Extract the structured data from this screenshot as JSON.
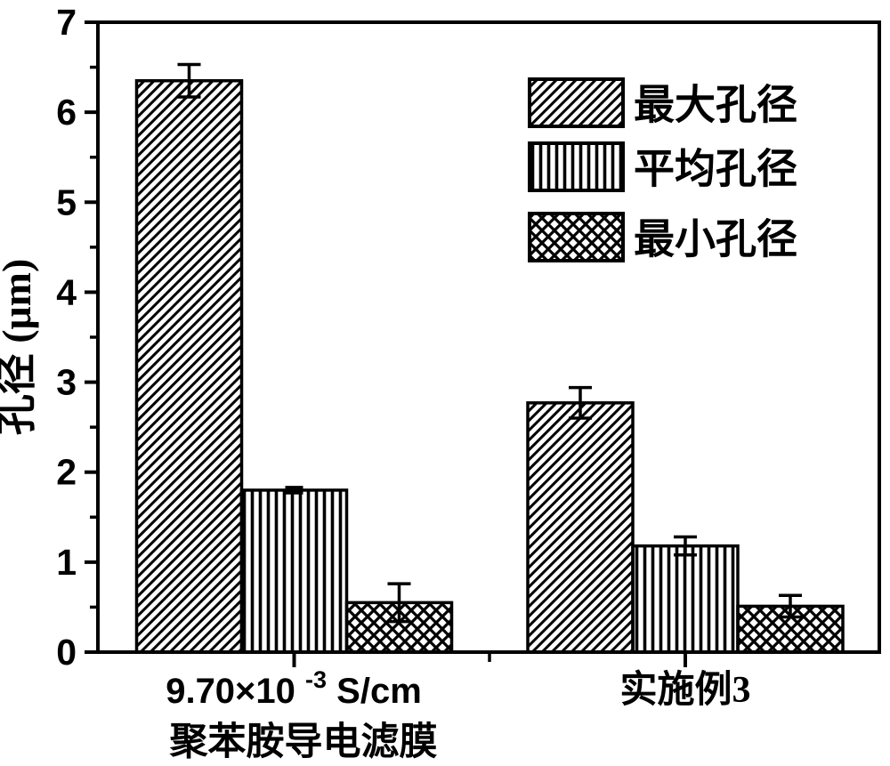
{
  "chart_data": {
    "type": "bar",
    "title": "",
    "ylabel": "孔径 (μm)",
    "xlabel": "",
    "ylim": [
      0,
      7
    ],
    "ytick_step": 1,
    "yminor_step": 0.5,
    "grid": false,
    "legend_position": "inside-top-right",
    "categories": [
      {
        "label_line1": "9.70×10⁻³S/cm",
        "label_line1_parts": {
          "prefix": "9.70×10",
          "sup": "-3",
          "suffix": "S/cm"
        },
        "label_line2": "聚苯胺导电滤膜"
      },
      {
        "label_line1": "实施例3",
        "label_line2": ""
      }
    ],
    "series": [
      {
        "name": "最大孔径",
        "pattern": "diagonal-hatch-icon",
        "values": [
          6.35,
          2.77
        ],
        "errors": [
          0.18,
          0.17
        ]
      },
      {
        "name": "平均孔径",
        "pattern": "vertical-lines-icon",
        "values": [
          1.8,
          1.18
        ],
        "errors": [
          0.03,
          0.1
        ]
      },
      {
        "name": "最小孔径",
        "pattern": "cross-hatch-icon",
        "values": [
          0.55,
          0.51
        ],
        "errors": [
          0.21,
          0.12
        ]
      }
    ],
    "colors": {
      "foreground": "#000000",
      "background": "#ffffff"
    }
  }
}
